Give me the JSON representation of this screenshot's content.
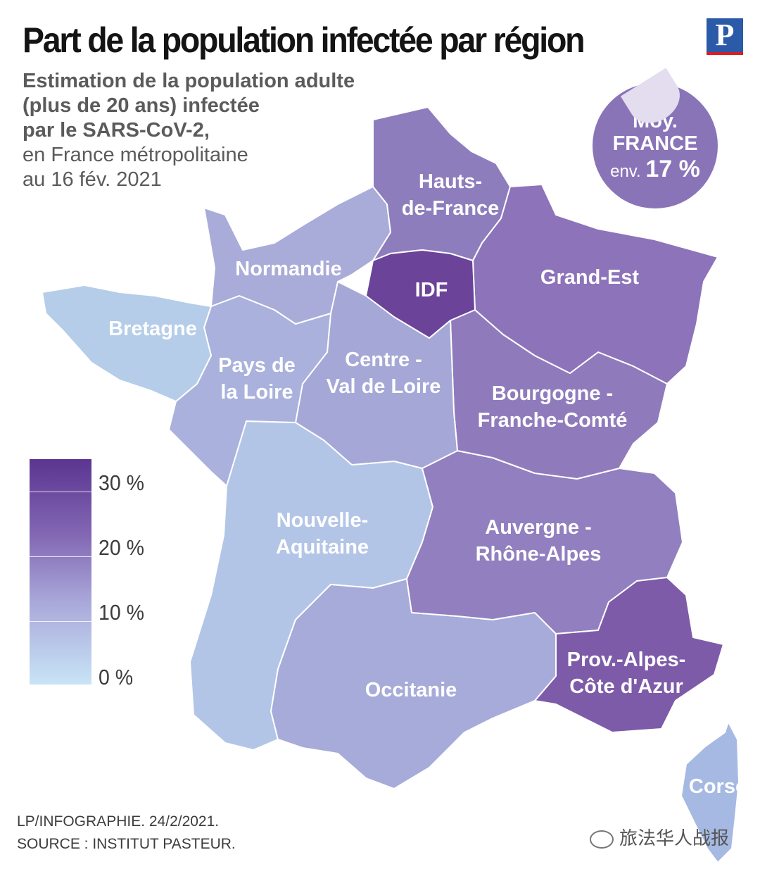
{
  "title": "Part de la population infectée par région",
  "logo": "P",
  "subtitle": {
    "bold_lines": [
      "Estimation de la population adulte",
      "(plus de 20 ans) infectée",
      "par le SARS-CoV-2,"
    ],
    "normal_lines": [
      "en France métropolitaine",
      "au 16 fév. 2021"
    ]
  },
  "badge": {
    "line1": "Moy.",
    "line2": "FRANCE",
    "line3_prefix": "env.",
    "line3_value": "17 %"
  },
  "legend": {
    "ticks": [
      "30 %",
      "20 %",
      "10 %",
      "0 %"
    ]
  },
  "regions": [
    {
      "name": "Hauts-de-France",
      "label": [
        "Hauts-",
        "de-France"
      ],
      "color": "#8e7dbd"
    },
    {
      "name": "Normandie",
      "label": [
        "Normandie"
      ],
      "color": "#a9abd8"
    },
    {
      "name": "Bretagne",
      "label": [
        "Bretagne"
      ],
      "color": "#b5cde9"
    },
    {
      "name": "IDF",
      "label": [
        "IDF"
      ],
      "color": "#6b4398"
    },
    {
      "name": "Grand-Est",
      "label": [
        "Grand-Est"
      ],
      "color": "#8d73b9"
    },
    {
      "name": "Pays de la Loire",
      "label": [
        "Pays de",
        "la Loire"
      ],
      "color": "#a9b1dc"
    },
    {
      "name": "Centre - Val de Loire",
      "label": [
        "Centre -",
        "Val de Loire"
      ],
      "color": "#a5a7d7"
    },
    {
      "name": "Bourgogne - Franche-Comté",
      "label": [
        "Bourgogne -",
        "Franche-Comté"
      ],
      "color": "#8f7bbc"
    },
    {
      "name": "Nouvelle-Aquitaine",
      "label": [
        "Nouvelle-",
        "Aquitaine"
      ],
      "color": "#b3c5e6"
    },
    {
      "name": "Auvergne - Rhône-Alpes",
      "label": [
        "Auvergne -",
        "Rhône-Alpes"
      ],
      "color": "#917fbf"
    },
    {
      "name": "Occitanie",
      "label": [
        "Occitanie"
      ],
      "color": "#a7abd9"
    },
    {
      "name": "Prov.-Alpes-Côte d'Azur",
      "label": [
        "Prov.-Alpes-",
        "Côte d'Azur"
      ],
      "color": "#7d5ba8"
    },
    {
      "name": "Corse",
      "label": [
        "Corse"
      ],
      "color": "#a5b9e2"
    }
  ],
  "credits": [
    "LP/INFOGRAPHIE.  24/2/2021.",
    "SOURCE : INSTITUT PASTEUR."
  ],
  "watermark": "旅法华人战报"
}
